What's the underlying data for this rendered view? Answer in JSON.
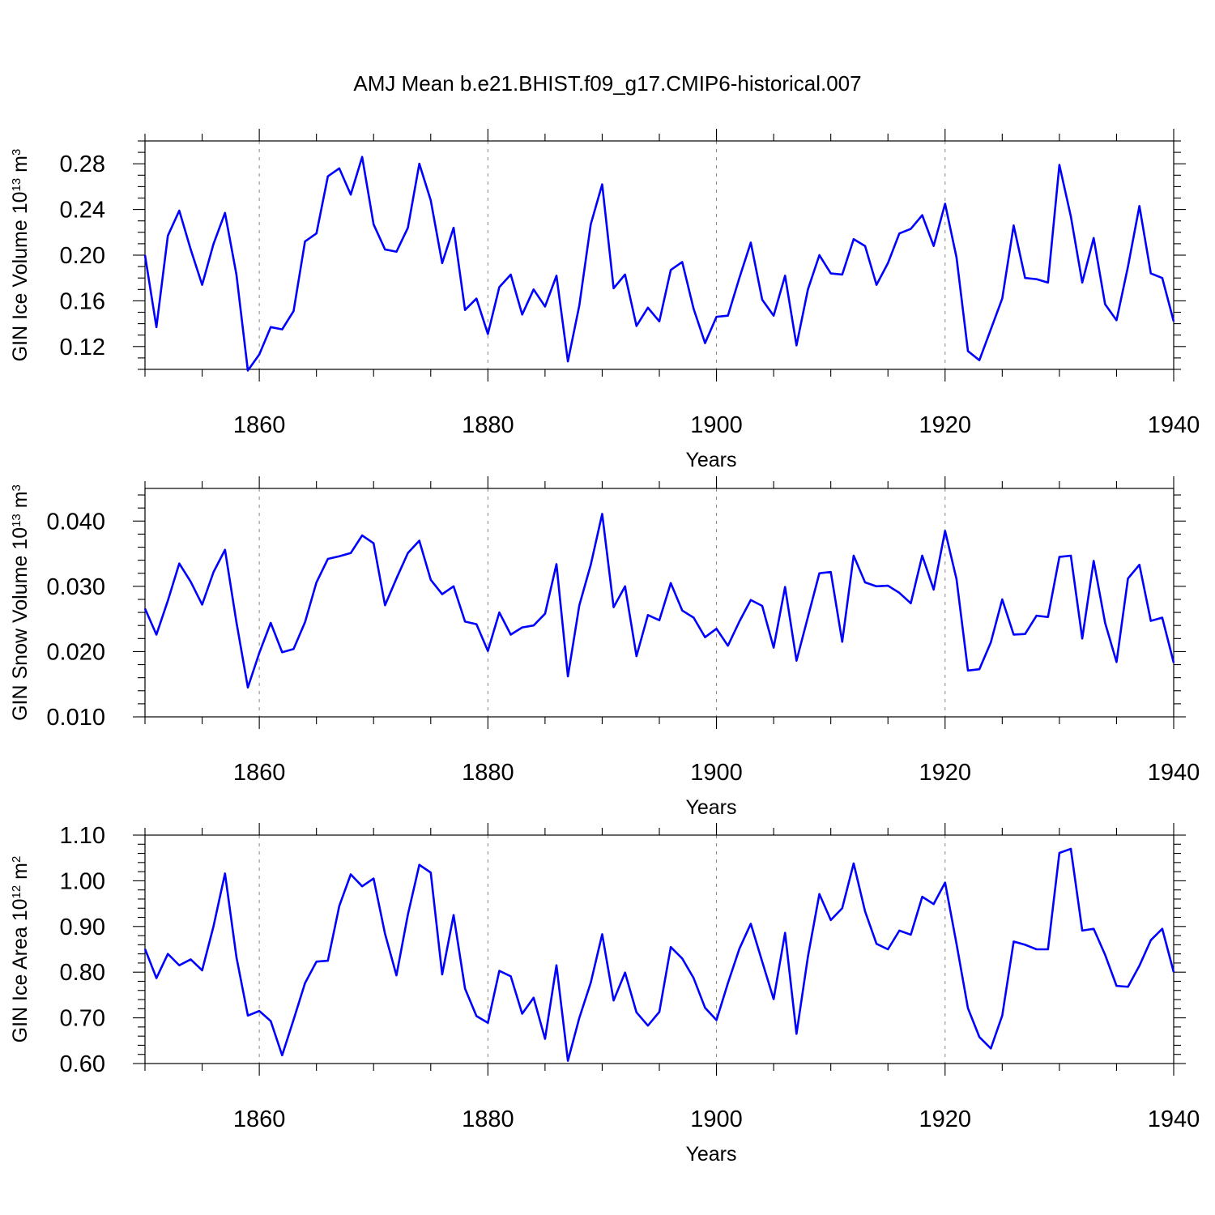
{
  "title": "AMJ Mean b.e21.BHIST.f09_g17.CMIP6-historical.007",
  "chart_data": [
    {
      "type": "line",
      "ylabel": "GIN Ice Volume 10",
      "ylabel_exp": "13",
      "ylabel_unit": " m",
      "ylabel_unit_exp": "3",
      "xlabel": "Years",
      "xlim": [
        1850,
        1940
      ],
      "ylim": [
        0.1,
        0.3
      ],
      "x_ticks": [
        1860,
        1880,
        1900,
        1920,
        1940
      ],
      "x_tick_labels": [
        "1860",
        "1880",
        "1900",
        "1920",
        "1940"
      ],
      "y_ticks": [
        0.12,
        0.16,
        0.2,
        0.24,
        0.28
      ],
      "y_tick_labels": [
        "0.12",
        "0.16",
        "0.20",
        "0.24",
        "0.28"
      ],
      "y_minor_step": 0.01,
      "grid": "vertical-dashed-at-major-x",
      "color": "#0000ff",
      "x_start": 1850,
      "values": [
        0.2,
        0.137,
        0.217,
        0.239,
        0.205,
        0.174,
        0.21,
        0.237,
        0.183,
        0.099,
        0.113,
        0.137,
        0.135,
        0.151,
        0.212,
        0.219,
        0.269,
        0.276,
        0.253,
        0.286,
        0.227,
        0.205,
        0.203,
        0.224,
        0.28,
        0.248,
        0.193,
        0.224,
        0.152,
        0.162,
        0.131,
        0.172,
        0.183,
        0.148,
        0.17,
        0.155,
        0.182,
        0.107,
        0.156,
        0.227,
        0.262,
        0.171,
        0.183,
        0.138,
        0.154,
        0.142,
        0.187,
        0.194,
        0.153,
        0.123,
        0.146,
        0.147,
        0.18,
        0.211,
        0.161,
        0.147,
        0.182,
        0.121,
        0.17,
        0.2,
        0.184,
        0.183,
        0.214,
        0.208,
        0.174,
        0.193,
        0.219,
        0.223,
        0.235,
        0.208,
        0.245,
        0.198,
        0.116,
        0.108,
        0.135,
        0.162,
        0.226,
        0.18,
        0.179,
        0.176,
        0.279,
        0.234,
        0.176,
        0.215,
        0.157,
        0.143,
        0.19,
        0.243,
        0.184,
        0.18,
        0.142
      ]
    },
    {
      "type": "line",
      "ylabel": "GIN Snow Volume 10",
      "ylabel_exp": "13",
      "ylabel_unit": " m",
      "ylabel_unit_exp": "3",
      "xlabel": "Years",
      "xlim": [
        1850,
        1940
      ],
      "ylim": [
        0.01,
        0.045
      ],
      "x_ticks": [
        1860,
        1880,
        1900,
        1920,
        1940
      ],
      "x_tick_labels": [
        "1860",
        "1880",
        "1900",
        "1920",
        "1940"
      ],
      "y_ticks": [
        0.01,
        0.02,
        0.03,
        0.04
      ],
      "y_tick_labels": [
        "0.010",
        "0.020",
        "0.030",
        "0.040"
      ],
      "y_minor_step": 0.002,
      "grid": "vertical-dashed-at-major-x",
      "color": "#0000ff",
      "x_start": 1850,
      "values": [
        0.0266,
        0.0226,
        0.0278,
        0.0335,
        0.0307,
        0.0272,
        0.0322,
        0.0356,
        0.0245,
        0.0145,
        0.0198,
        0.0244,
        0.0199,
        0.0204,
        0.0245,
        0.0306,
        0.0342,
        0.0346,
        0.0351,
        0.0378,
        0.0366,
        0.0271,
        0.0312,
        0.0351,
        0.037,
        0.031,
        0.0288,
        0.03,
        0.0246,
        0.0242,
        0.0201,
        0.026,
        0.0226,
        0.0237,
        0.024,
        0.0258,
        0.0334,
        0.0162,
        0.0271,
        0.0333,
        0.0411,
        0.0268,
        0.03,
        0.0193,
        0.0256,
        0.0248,
        0.0305,
        0.0263,
        0.0252,
        0.0222,
        0.0235,
        0.0209,
        0.0246,
        0.0279,
        0.027,
        0.0206,
        0.0299,
        0.0186,
        0.0253,
        0.032,
        0.0322,
        0.0215,
        0.0347,
        0.0306,
        0.03,
        0.0301,
        0.029,
        0.0274,
        0.0347,
        0.0295,
        0.0385,
        0.0311,
        0.0171,
        0.0173,
        0.0214,
        0.028,
        0.0226,
        0.0227,
        0.0255,
        0.0253,
        0.0345,
        0.0347,
        0.022,
        0.0339,
        0.0244,
        0.0184,
        0.0312,
        0.0333,
        0.0247,
        0.0252,
        0.0183
      ]
    },
    {
      "type": "line",
      "ylabel": "GIN Ice Area 10",
      "ylabel_exp": "12",
      "ylabel_unit": " m",
      "ylabel_unit_exp": "2",
      "xlabel": "Years",
      "xlim": [
        1850,
        1940
      ],
      "ylim": [
        0.6,
        1.1
      ],
      "x_ticks": [
        1860,
        1880,
        1900,
        1920,
        1940
      ],
      "x_tick_labels": [
        "1860",
        "1880",
        "1900",
        "1920",
        "1940"
      ],
      "y_ticks": [
        0.6,
        0.7,
        0.8,
        0.9,
        1.0,
        1.1
      ],
      "y_tick_labels": [
        "0.60",
        "0.70",
        "0.80",
        "0.90",
        "1.00",
        "1.10"
      ],
      "y_minor_step": 0.02,
      "grid": "vertical-dashed-at-major-x",
      "color": "#0000ff",
      "x_start": 1850,
      "values": [
        0.851,
        0.787,
        0.84,
        0.815,
        0.828,
        0.804,
        0.901,
        1.016,
        0.833,
        0.705,
        0.715,
        0.693,
        0.618,
        0.696,
        0.776,
        0.823,
        0.825,
        0.945,
        1.014,
        0.988,
        1.005,
        0.884,
        0.793,
        0.926,
        1.035,
        1.018,
        0.795,
        0.925,
        0.764,
        0.704,
        0.689,
        0.803,
        0.791,
        0.709,
        0.744,
        0.654,
        0.815,
        0.606,
        0.7,
        0.777,
        0.883,
        0.738,
        0.799,
        0.712,
        0.683,
        0.713,
        0.855,
        0.83,
        0.787,
        0.722,
        0.695,
        0.776,
        0.851,
        0.906,
        0.823,
        0.741,
        0.886,
        0.665,
        0.834,
        0.971,
        0.914,
        0.94,
        1.038,
        0.933,
        0.862,
        0.85,
        0.891,
        0.882,
        0.965,
        0.949,
        0.996,
        0.862,
        0.721,
        0.658,
        0.633,
        0.705,
        0.867,
        0.86,
        0.85,
        0.85,
        1.061,
        1.07,
        0.891,
        0.895,
        0.838,
        0.77,
        0.768,
        0.814,
        0.87,
        0.895,
        0.8
      ]
    }
  ]
}
